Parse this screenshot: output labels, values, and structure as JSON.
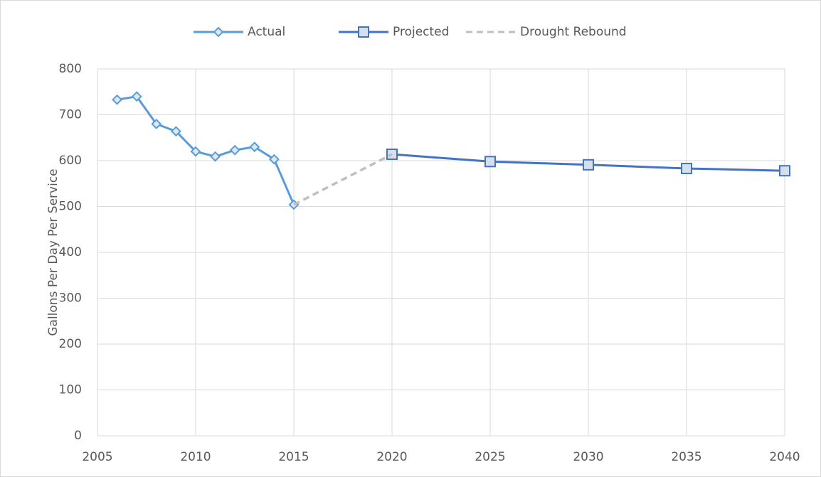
{
  "chart_data": {
    "type": "line",
    "y_label": "Gallons Per Day Per Service",
    "xlim": [
      2005,
      2040
    ],
    "xticks": [
      2005,
      2010,
      2015,
      2020,
      2025,
      2030,
      2035,
      2040
    ],
    "ylim": [
      0,
      800
    ],
    "yticks": [
      0,
      100,
      200,
      300,
      400,
      500,
      600,
      700,
      800
    ],
    "grid": true,
    "legend": "top",
    "series": [
      {
        "name": "Actual",
        "color": "#5b9bd5",
        "marker": "diamond",
        "dash": false,
        "x": [
          2006,
          2007,
          2008,
          2009,
          2010,
          2011,
          2012,
          2013,
          2014,
          2015
        ],
        "values": [
          733,
          740,
          680,
          664,
          620,
          609,
          623,
          630,
          603,
          504
        ]
      },
      {
        "name": "Projected",
        "color": "#4472c4",
        "marker": "square",
        "dash": false,
        "x": [
          2020,
          2025,
          2030,
          2035,
          2040
        ],
        "values": [
          614,
          598,
          591,
          583,
          578
        ]
      },
      {
        "name": "Drought Rebound",
        "color": "#bfbfbf",
        "marker": "none",
        "dash": true,
        "x": [
          2015,
          2020
        ],
        "values": [
          504,
          614
        ]
      }
    ]
  }
}
